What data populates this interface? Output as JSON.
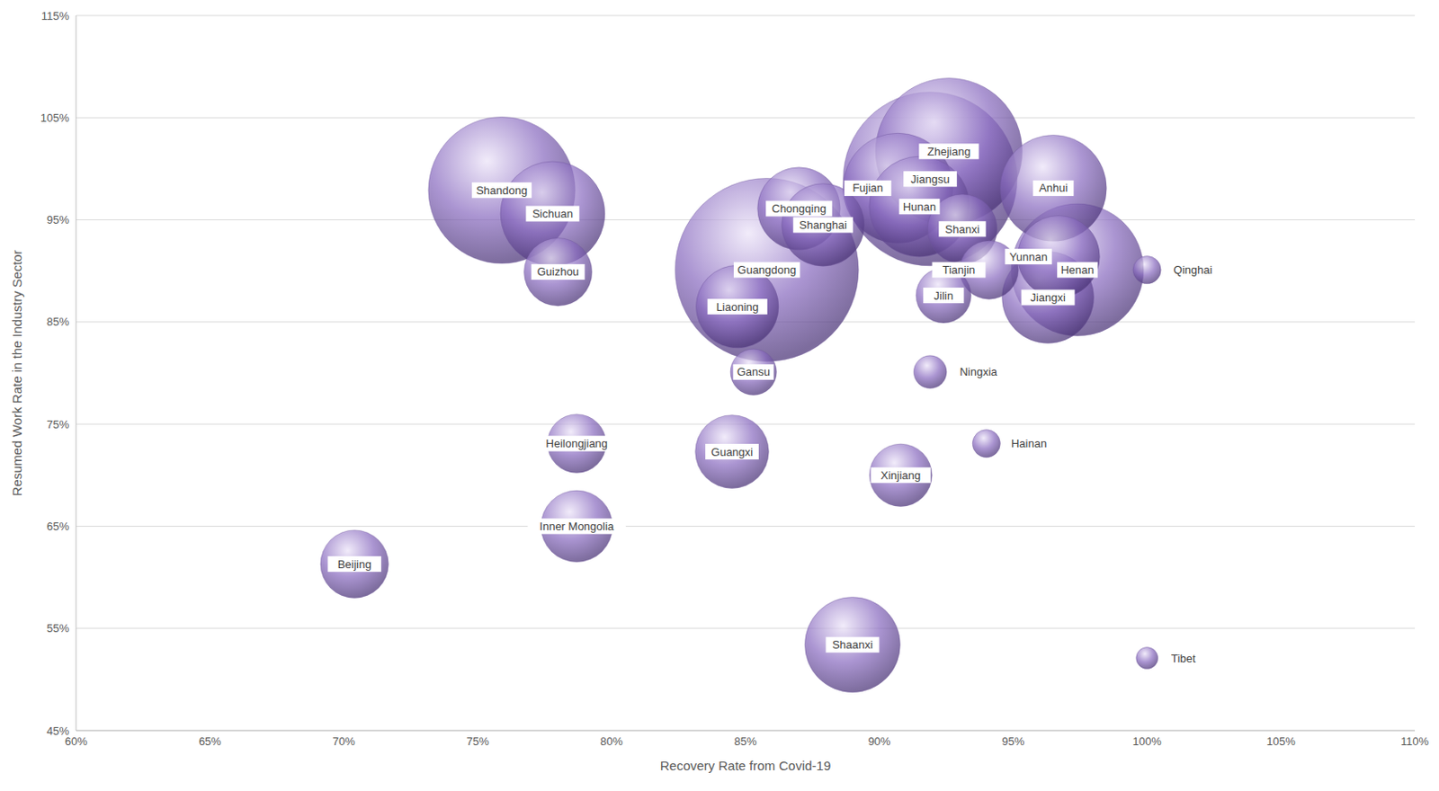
{
  "chart_data": {
    "type": "bubble",
    "color": "#8a6cc0",
    "grid": true,
    "data_labels": true,
    "x_label": "Recovery Rate from Covid-19",
    "y_label": "Resumed Work Rate in the Industry Sector",
    "xlim": [
      60,
      110
    ],
    "xticks": [
      {
        "value": 60,
        "label": "60%"
      },
      {
        "value": 65,
        "label": "65%"
      },
      {
        "value": 70,
        "label": "70%"
      },
      {
        "value": 75,
        "label": "75%"
      },
      {
        "value": 80,
        "label": "80%"
      },
      {
        "value": 85,
        "label": "85%"
      },
      {
        "value": 90,
        "label": "90%"
      },
      {
        "value": 95,
        "label": "95%"
      },
      {
        "value": 100,
        "label": "100%"
      },
      {
        "value": 105,
        "label": "105%"
      },
      {
        "value": 110,
        "label": "110%"
      }
    ],
    "ylim": [
      45,
      115
    ],
    "yticks": [
      {
        "value": 45,
        "label": "45%"
      },
      {
        "value": 55,
        "label": "55%"
      },
      {
        "value": 65,
        "label": "65%"
      },
      {
        "value": 75,
        "label": "75%"
      },
      {
        "value": 85,
        "label": "85%"
      },
      {
        "value": 95,
        "label": "95%"
      },
      {
        "value": 105,
        "label": "105%"
      },
      {
        "value": 115,
        "label": "115%"
      }
    ],
    "names": [
      "Guangdong",
      "Jiangsu",
      "Shandong",
      "Zhejiang",
      "Henan",
      "Fujian",
      "Sichuan",
      "Anhui",
      "Hunan",
      "Shaanxi",
      "Jiangxi",
      "Chongqing",
      "Shanghai",
      "Liaoning",
      "Yunnan",
      "Guangxi",
      "Inner Mongolia",
      "Shanxi",
      "Guizhou",
      "Beijing",
      "Xinjiang",
      "Tianjin",
      "Heilongjiang",
      "Jilin",
      "Gansu",
      "Ningxia",
      "Qinghai",
      "Hainan",
      "Tibet"
    ],
    "x": [
      85.8,
      91.9,
      75.9,
      92.6,
      97.4,
      90.7,
      77.8,
      96.5,
      91.5,
      89.0,
      96.3,
      87.0,
      87.9,
      84.7,
      96.7,
      84.5,
      78.7,
      93.1,
      78.0,
      70.4,
      90.8,
      94.1,
      78.7,
      92.4,
      85.3,
      91.9,
      100.0,
      94.0,
      100.0
    ],
    "values": [
      90.1,
      99.0,
      97.9,
      101.7,
      90.1,
      98.1,
      95.6,
      98.1,
      96.3,
      53.4,
      87.4,
      96.1,
      94.5,
      86.5,
      91.4,
      72.3,
      65.0,
      94.1,
      89.9,
      61.3,
      70.0,
      90.1,
      73.1,
      87.6,
      80.1,
      80.1,
      90.1,
      73.1,
      52.1
    ],
    "sizes": [
      100,
      90,
      64,
      64,
      52,
      36,
      32.5,
      33.6,
      30,
      27,
      25,
      20.3,
      20.3,
      20.3,
      20,
      16,
      15.2,
      14.4,
      13.7,
      13.7,
      11.6,
      10.2,
      10.2,
      9,
      6.3,
      3.2,
      2.3,
      2.3,
      1.4
    ]
  }
}
